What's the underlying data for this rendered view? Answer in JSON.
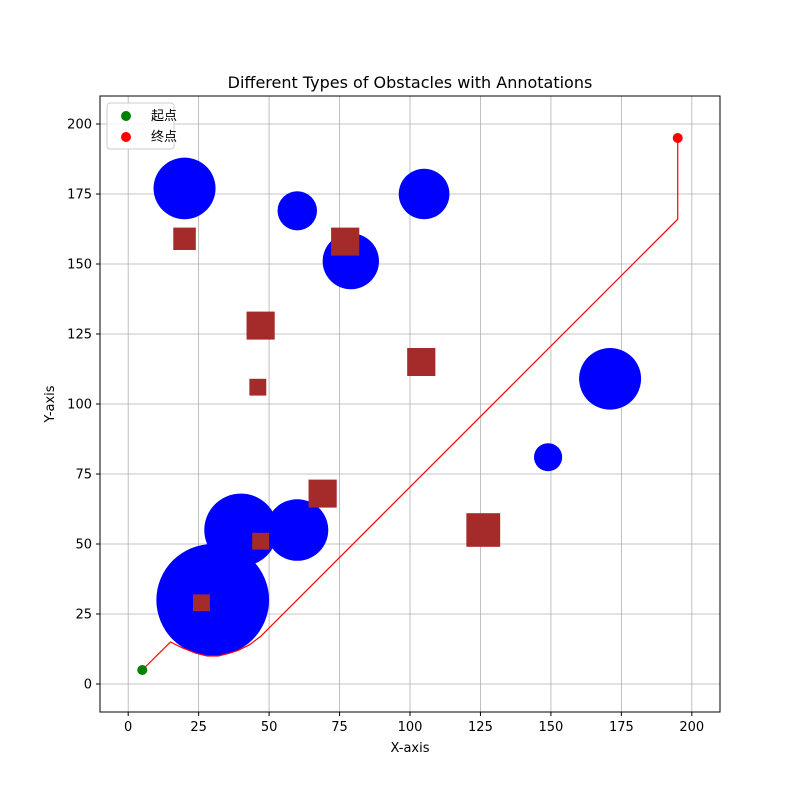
{
  "chart_data": {
    "type": "scatter",
    "title": "Different Types of Obstacles with Annotations",
    "xlabel": "X-axis",
    "ylabel": "Y-axis",
    "xlim": [
      -10,
      210
    ],
    "ylim": [
      -10,
      210
    ],
    "xticks": [
      0,
      25,
      50,
      75,
      100,
      125,
      150,
      175,
      200
    ],
    "yticks": [
      0,
      25,
      50,
      75,
      100,
      125,
      150,
      175,
      200
    ],
    "grid": true,
    "legend_position": "top-left",
    "colors": {
      "circle_obstacle": "#0000ff",
      "square_obstacle": "#a52a2a",
      "path": "#ff0000",
      "start": "#008000",
      "goal": "#ff0000"
    },
    "legend": [
      {
        "label": "起点",
        "color": "#008000"
      },
      {
        "label": "终点",
        "color": "#ff0000"
      }
    ],
    "start": {
      "x": 5,
      "y": 5
    },
    "goal": {
      "x": 195,
      "y": 195
    },
    "circle_obstacles": [
      {
        "x": 20,
        "y": 177,
        "r": 11
      },
      {
        "x": 60,
        "y": 169,
        "r": 7
      },
      {
        "x": 105,
        "y": 175,
        "r": 9
      },
      {
        "x": 79,
        "y": 151,
        "r": 10
      },
      {
        "x": 171,
        "y": 109,
        "r": 11
      },
      {
        "x": 149,
        "y": 81,
        "r": 5
      },
      {
        "x": 40,
        "y": 55,
        "r": 13
      },
      {
        "x": 60,
        "y": 55,
        "r": 11
      },
      {
        "x": 30,
        "y": 30,
        "r": 20
      }
    ],
    "square_obstacles": [
      {
        "x": 20,
        "y": 159,
        "size": 8
      },
      {
        "x": 77,
        "y": 158,
        "size": 10
      },
      {
        "x": 47,
        "y": 128,
        "size": 10
      },
      {
        "x": 104,
        "y": 115,
        "size": 10
      },
      {
        "x": 46,
        "y": 106,
        "size": 6
      },
      {
        "x": 69,
        "y": 68,
        "size": 10
      },
      {
        "x": 126,
        "y": 55,
        "size": 12
      },
      {
        "x": 47,
        "y": 51,
        "size": 6
      },
      {
        "x": 26,
        "y": 29,
        "size": 6
      }
    ],
    "path": {
      "x": [
        5,
        15,
        19,
        24,
        28,
        32,
        36,
        39,
        43,
        47,
        195,
        195
      ],
      "y": [
        5,
        15,
        13,
        11,
        10,
        10,
        11,
        12,
        14,
        17,
        166,
        195
      ]
    }
  }
}
